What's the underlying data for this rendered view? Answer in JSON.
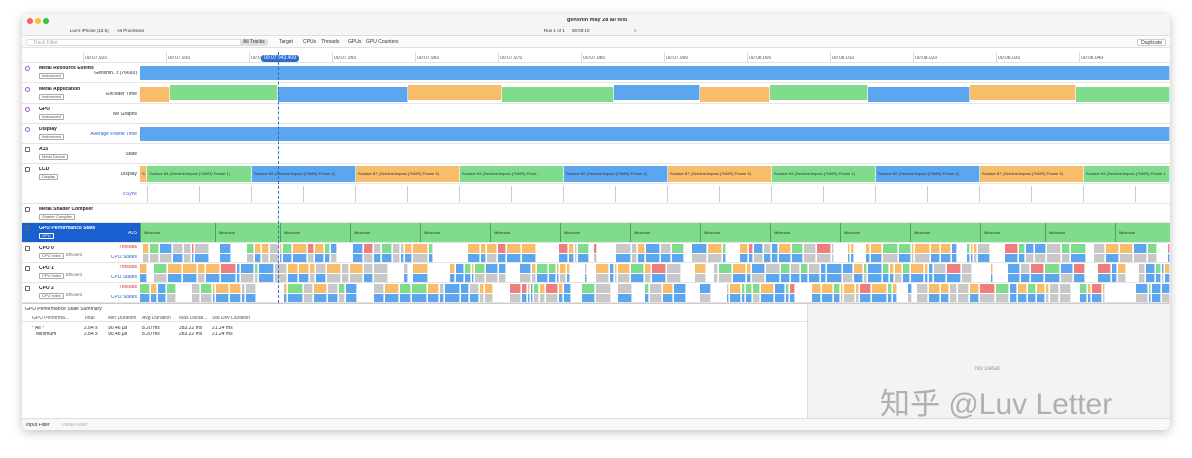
{
  "window": {
    "title": "genshin may 28 all test",
    "device": "Luv's iPhone (15.5)",
    "target": "All Processes",
    "run": "Run 1 of 1",
    "elapsed": "00:00:10",
    "warnings": "6"
  },
  "filter": {
    "placeholder": "Track Filter",
    "tabs": [
      "All Tracks",
      "Target",
      "CPUs",
      "Threads",
      "GPUs",
      "GPU Counters"
    ],
    "duplicate": "Duplicate"
  },
  "ruler": {
    "ticks": [
      "00:07.920",
      "00:07.930",
      "00:07.940",
      "00:07.950",
      "00:07.960",
      "00:07.970",
      "00:07.980",
      "00:07.990",
      "00:08.000",
      "00:08.010",
      "00:08.020",
      "00:08.030",
      "00:08.040"
    ],
    "cursor": "00:07.943.409"
  },
  "tracks": [
    {
      "name": "Metal Resource Events",
      "tag": "Instrument",
      "lanes": [
        "Genshin...t (76693)"
      ]
    },
    {
      "name": "Metal Application",
      "tag": "Instrument",
      "lanes": [
        "Encoder Time"
      ]
    },
    {
      "name": "GPU",
      "tag": "Instrument",
      "lanes": [
        "No Graphs"
      ]
    },
    {
      "name": "Display",
      "tag": "Instrument",
      "lanes": [
        "Average Frame Time"
      ]
    },
    {
      "name": "A15",
      "tag": "Metal Device",
      "lanes": [
        "State"
      ]
    },
    {
      "name": "LCD",
      "tag": "Display",
      "lanes": [
        "Display",
        "VSync"
      ],
      "segments": [
        "S...",
        "Surface 84 (GenshinImpact (76693) Frame 1)",
        "Surface 82 (GenshinImpact (76693) Frame 2)",
        "Surface 87 (GenshinImpact (76693) Frame 3)",
        "Surface 84 (GenshinImpact (76693) Fram...",
        "Surface 82 (GenshinImpact (76693) Frame 2)",
        "Surface 87 (GenshinImpact (76693) Frame 3)",
        "Surface 84 (GenshinImpact (76693) Frame 1)",
        "Surface 82 (GenshinImpact (76693) Frame 2)",
        "Surface 87 (GenshinImpact (76693) Frame 3)",
        "Surface 84 (GenshinImpact (76693) Frame 1"
      ]
    },
    {
      "name": "Metal Shader Compiler",
      "tag": "Shader Compiler",
      "lanes": []
    },
    {
      "name": "GPU Performance State",
      "tag": "GPU",
      "lanes": [
        "A15"
      ],
      "segments": [
        "Minimum",
        "Minimum",
        "Minimum",
        "Minimum",
        "Minimum",
        "Minimum",
        "Minimum",
        "Minimum",
        "Minimum",
        "Minimum",
        "Minimum",
        "Minimum",
        "Minimum",
        "Minimum",
        "Minimum"
      ]
    },
    {
      "name": "CPU 0",
      "tag": "CPU Index",
      "core": "Efficient",
      "lanes": [
        "Threads",
        "CPU States"
      ]
    },
    {
      "name": "CPU 1",
      "tag": "CPU Index",
      "core": "Efficient",
      "lanes": [
        "Threads",
        "CPU States"
      ]
    },
    {
      "name": "CPU 2",
      "tag": "CPU Index",
      "core": "Efficient",
      "lanes": [
        "Threads",
        "CPU States"
      ]
    }
  ],
  "summary": {
    "title": "GPU Performance State Summary",
    "columns": [
      "GPU Performa...",
      "Total",
      "Min Duration",
      "Avg Duration",
      "Max Durati...",
      "Std Dev Duration"
    ],
    "rows": [
      [
        "* All *",
        "2.84 s",
        "90.46 µs",
        "8.20 ms",
        "283.22 ms",
        "21.24 ms"
      ],
      [
        "Minimum",
        "2.84 s",
        "90.46 µs",
        "8.20 ms",
        "283.22 ms",
        "21.24 ms"
      ]
    ]
  },
  "detail": {
    "empty": "No Detail"
  },
  "footer": {
    "input": "Input Filter",
    "detail": "Detail Filter"
  },
  "watermark": "知乎 @Luv Letter"
}
